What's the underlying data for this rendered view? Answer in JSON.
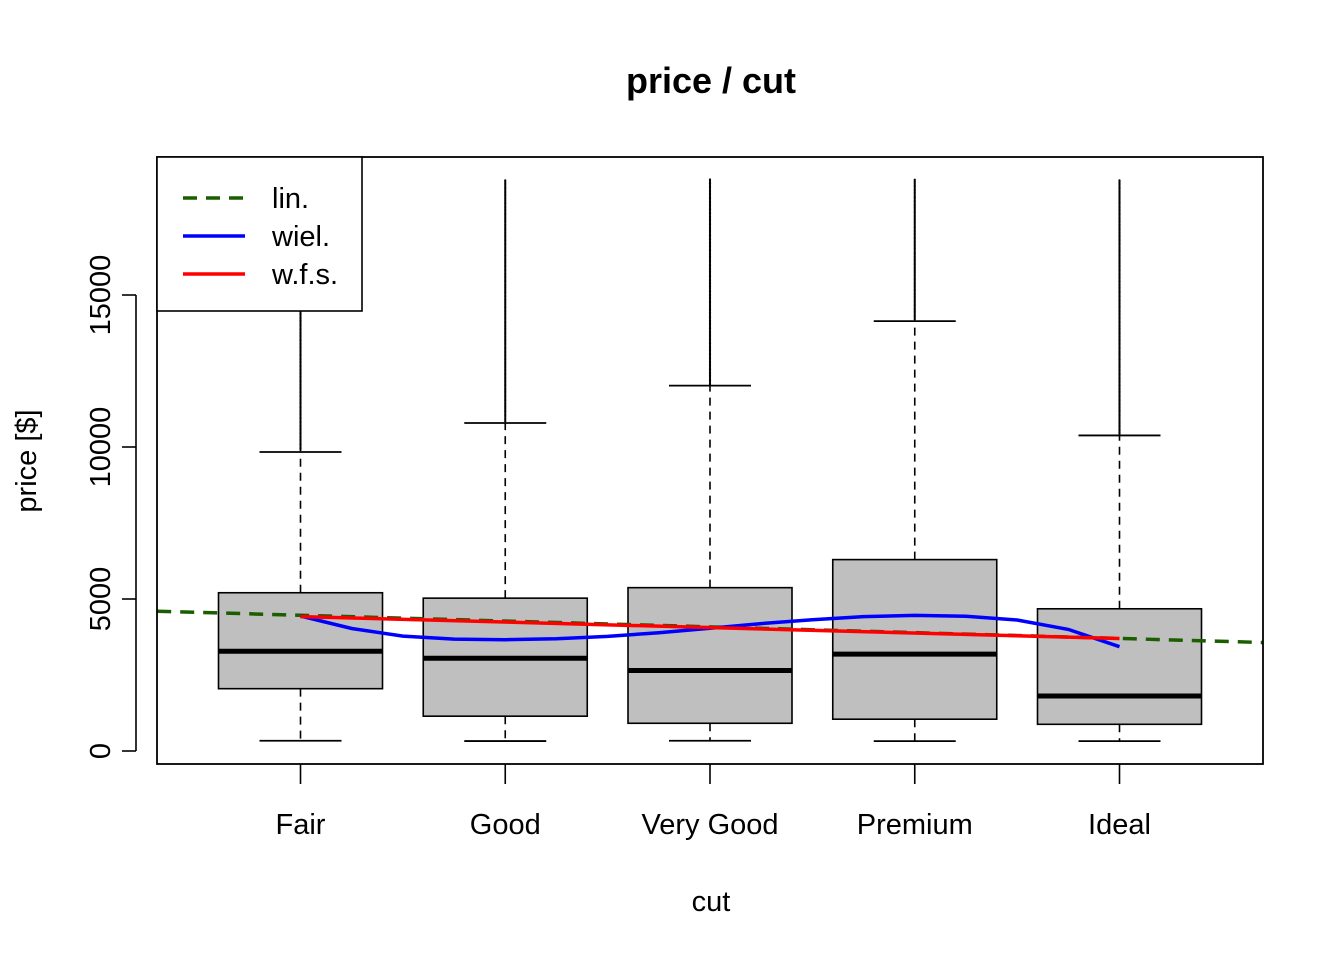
{
  "chart_data": {
    "type": "box",
    "title": "price / cut",
    "xlabel": "cut",
    "ylabel": "price [$]",
    "categories": [
      "Fair",
      "Good",
      "Very Good",
      "Premium",
      "Ideal"
    ],
    "yticks": [
      0,
      5000,
      10000,
      15000
    ],
    "ylim": [
      -400,
      19600
    ],
    "boxes": [
      {
        "category": "Fair",
        "whisker_low": 337,
        "q1": 2050,
        "median": 3282,
        "q3": 5206,
        "whisker_high": 9836,
        "outliers_from": 9900,
        "outliers_to": 18570
      },
      {
        "category": "Good",
        "whisker_low": 327,
        "q1": 1145,
        "median": 3050,
        "q3": 5028,
        "whisker_high": 10790,
        "outliers_from": 10850,
        "outliers_to": 18790
      },
      {
        "category": "Very Good",
        "whisker_low": 336,
        "q1": 912,
        "median": 2648,
        "q3": 5373,
        "whisker_high": 12020,
        "outliers_from": 12050,
        "outliers_to": 18820
      },
      {
        "category": "Premium",
        "whisker_low": 326,
        "q1": 1046,
        "median": 3185,
        "q3": 6296,
        "whisker_high": 14140,
        "outliers_from": 14200,
        "outliers_to": 18820
      },
      {
        "category": "Ideal",
        "whisker_low": 326,
        "q1": 878,
        "median": 1810,
        "q3": 4678,
        "whisker_high": 10380,
        "outliers_from": 10400,
        "outliers_to": 18810
      }
    ],
    "series": [
      {
        "name": "lin.",
        "style": "dashed",
        "color": "#1a5e00",
        "x": [
          0.3,
          5.7
        ],
        "y": [
          4600,
          3570
        ]
      },
      {
        "name": "wiel.",
        "style": "solid",
        "color": "#0000ff",
        "x": [
          1,
          1.25,
          1.5,
          1.75,
          2,
          2.25,
          2.5,
          2.75,
          3,
          3.25,
          3.5,
          3.75,
          4,
          4.25,
          4.5,
          4.75,
          5
        ],
        "y": [
          4440,
          4030,
          3780,
          3680,
          3660,
          3690,
          3770,
          3890,
          4040,
          4190,
          4320,
          4420,
          4460,
          4430,
          4310,
          4000,
          3430
        ]
      },
      {
        "name": "w.f.s.",
        "style": "solid",
        "color": "#ff0000",
        "x": [
          1,
          5
        ],
        "y": [
          4420,
          3700
        ]
      }
    ],
    "legend": {
      "position": "top-left",
      "entries": [
        "lin.",
        "wiel.",
        "w.f.s."
      ]
    },
    "box_fill": "#bfbfbf",
    "grid": false
  }
}
